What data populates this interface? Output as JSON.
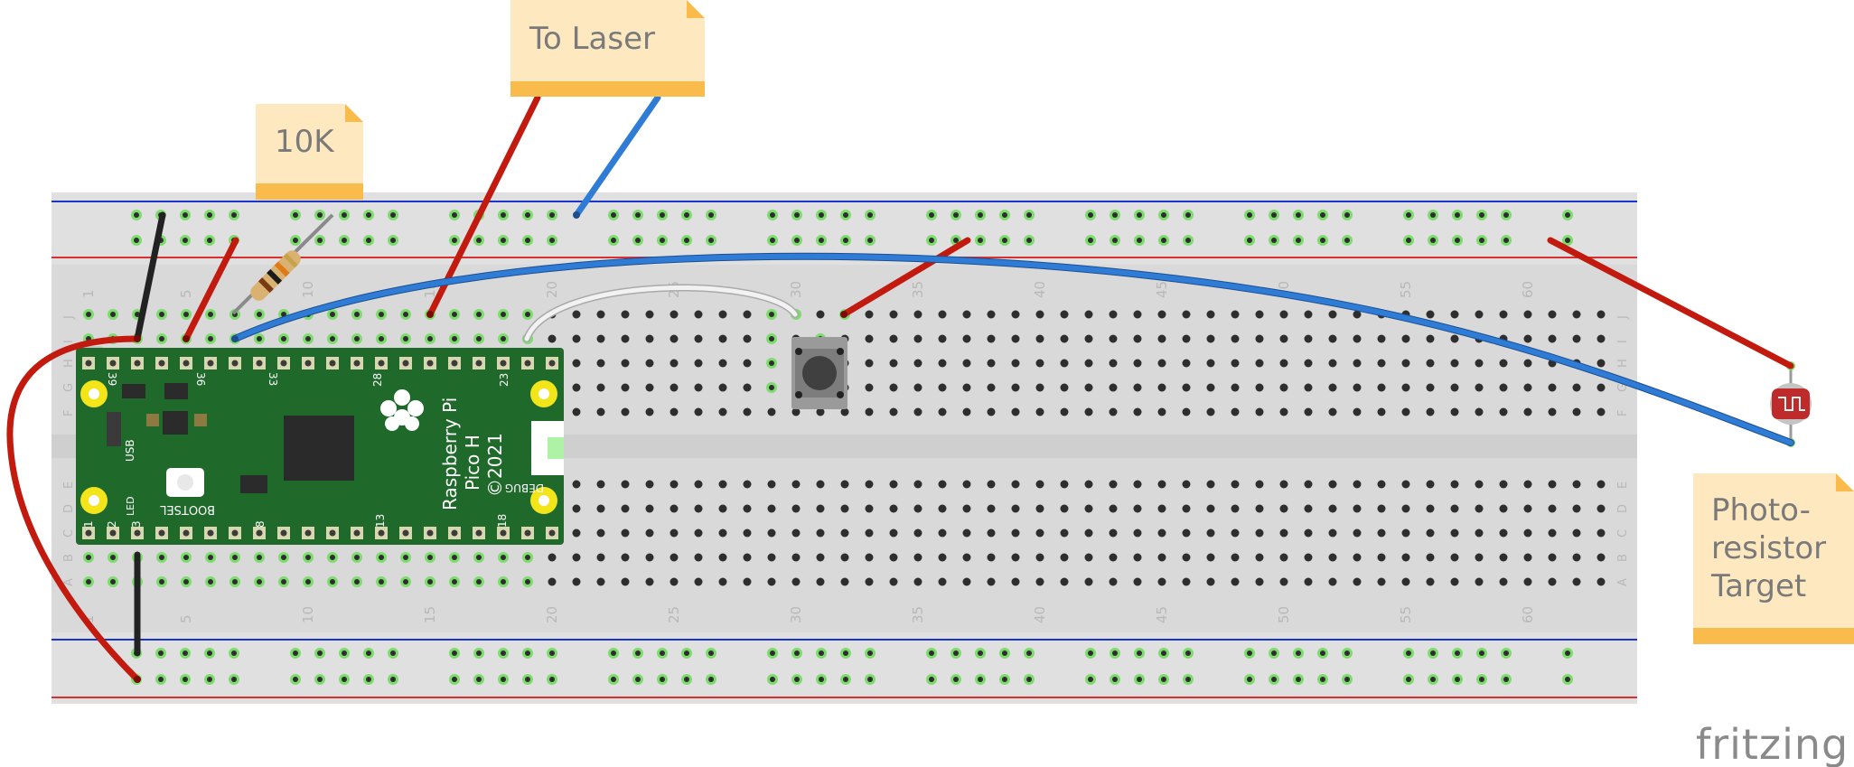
{
  "notes": {
    "laser": "To Laser",
    "resistor": "10K",
    "photoresistor": [
      "Photo-",
      "resistor",
      "Target"
    ]
  },
  "board": {
    "name_lines": [
      "Raspberry Pi",
      "Pico H",
      "©2021"
    ],
    "labels": {
      "usb": "USB",
      "led": "LED",
      "bootsel": "BOOTSEL",
      "debug": "DEBUG"
    },
    "pin_numbers_top": [
      "39",
      "36",
      "33",
      "28",
      "23"
    ],
    "pin_numbers_bottom": [
      "1",
      "2",
      "3",
      "8",
      "13",
      "18"
    ]
  },
  "breadboard": {
    "column_numbers": [
      "1",
      "5",
      "10",
      "15",
      "20",
      "25",
      "30",
      "35",
      "40",
      "45",
      "50",
      "55",
      "60"
    ],
    "row_letters_top": [
      "J",
      "I",
      "H",
      "G",
      "F"
    ],
    "row_letters_bottom": [
      "E",
      "D",
      "C",
      "B",
      "A"
    ]
  },
  "brand": "fritzing",
  "colors": {
    "wire_red": "#c21a0e",
    "wire_blue": "#2f7cd6",
    "wire_black": "#222222",
    "wire_white": "#e6e6e6",
    "board_green": "#1f6a2a",
    "breadboard": "#d9d9d9",
    "note": "#fde8c0",
    "note_band": "#f8bb4c",
    "rail_blue": "#1b35c9",
    "rail_red": "#d63030"
  }
}
